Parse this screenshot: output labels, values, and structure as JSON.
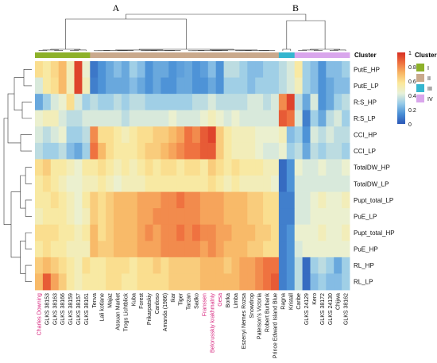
{
  "chart_data": {
    "type": "heatmap",
    "title": "",
    "xlabel": "",
    "ylabel": "",
    "group_labels": [
      "A",
      "B"
    ],
    "rows": [
      "PutE_HP",
      "PutE_LP",
      "R:S_HP",
      "R:S_LP",
      "CCI_HP",
      "CCI_LP",
      "TotalDW_HP",
      "TotalDW_LP",
      "Pupt_total_LP",
      "PuE_LP",
      "Pupt_total_HP",
      "PuE_HP",
      "RL_HP",
      "RL_LP"
    ],
    "columns": [
      "Charles Downing",
      "GLKS 38153",
      "GLKS 38163",
      "GLKS 38166",
      "GLKS 38159",
      "GLKS 38157",
      "GLKS 38161",
      "Tenva",
      "Lali kotlane",
      "Majaz",
      "Assuan Market",
      "Trogs Lichtblick",
      "Kuba",
      "Forest",
      "Prikarpatskiy",
      "Cardoso",
      "Amanda (1986)",
      "Ikar",
      "Tiger",
      "Tarzan",
      "Sadko",
      "Franssen",
      "Belorusskiy krakhmalniy",
      "Gesa",
      "Borka",
      "Limba",
      "Eszenyi Nemes Rozsa",
      "Snowdrop",
      "Paterson's Victoria",
      "Robert Burbank",
      "Prince Edward Island Blue",
      "Ragna",
      "Kristall",
      "Caribe",
      "GLKS 24129",
      "Kero",
      "GLKS 38172",
      "GLKS 24130",
      "Chijwa",
      "GLKS 38162"
    ],
    "column_clusters": [
      "I",
      "I",
      "I",
      "I",
      "I",
      "I",
      "I",
      "II",
      "II",
      "II",
      "II",
      "II",
      "II",
      "II",
      "II",
      "II",
      "II",
      "II",
      "II",
      "II",
      "II",
      "II",
      "II",
      "II",
      "II",
      "II",
      "II",
      "II",
      "II",
      "II",
      "II",
      "III",
      "III",
      "IV",
      "IV",
      "IV",
      "IV",
      "IV",
      "IV",
      "IV"
    ],
    "values": [
      [
        0.6,
        0.55,
        0.62,
        0.7,
        0.5,
        0.95,
        0.45,
        0.08,
        0.15,
        0.2,
        0.25,
        0.2,
        0.3,
        0.25,
        0.15,
        0.2,
        0.2,
        0.15,
        0.18,
        0.2,
        0.15,
        0.18,
        0.25,
        0.15,
        0.35,
        0.35,
        0.3,
        0.25,
        0.25,
        0.3,
        0.3,
        0.35,
        0.4,
        0.55,
        0.3,
        0.25,
        0.15,
        0.25,
        0.25,
        0.3
      ],
      [
        0.4,
        0.55,
        0.6,
        0.7,
        0.5,
        0.95,
        0.5,
        0.1,
        0.15,
        0.2,
        0.2,
        0.2,
        0.25,
        0.2,
        0.15,
        0.2,
        0.15,
        0.15,
        0.2,
        0.2,
        0.15,
        0.15,
        0.2,
        0.15,
        0.3,
        0.3,
        0.3,
        0.25,
        0.3,
        0.3,
        0.3,
        0.35,
        0.4,
        0.5,
        0.3,
        0.25,
        0.15,
        0.2,
        0.25,
        0.25
      ],
      [
        0.2,
        0.3,
        0.4,
        0.45,
        0.6,
        0.4,
        0.3,
        0.35,
        0.3,
        0.3,
        0.35,
        0.3,
        0.35,
        0.35,
        0.3,
        0.3,
        0.3,
        0.3,
        0.3,
        0.3,
        0.35,
        0.35,
        0.4,
        0.35,
        0.35,
        0.35,
        0.35,
        0.4,
        0.4,
        0.35,
        0.4,
        0.8,
        0.95,
        0.35,
        0.2,
        0.4,
        0.15,
        0.2,
        0.3,
        0.35
      ],
      [
        0.45,
        0.5,
        0.5,
        0.4,
        0.35,
        0.35,
        0.4,
        0.4,
        0.4,
        0.4,
        0.4,
        0.35,
        0.4,
        0.4,
        0.4,
        0.4,
        0.4,
        0.45,
        0.4,
        0.4,
        0.4,
        0.45,
        0.5,
        0.45,
        0.4,
        0.45,
        0.4,
        0.4,
        0.4,
        0.4,
        0.4,
        0.9,
        0.85,
        0.4,
        0.1,
        0.3,
        0.2,
        0.35,
        0.4,
        0.3
      ],
      [
        0.4,
        0.35,
        0.4,
        0.45,
        0.3,
        0.3,
        0.35,
        0.8,
        0.6,
        0.6,
        0.55,
        0.5,
        0.55,
        0.6,
        0.6,
        0.65,
        0.65,
        0.7,
        0.75,
        0.85,
        0.8,
        0.9,
        0.95,
        0.65,
        0.55,
        0.5,
        0.5,
        0.5,
        0.45,
        0.45,
        0.45,
        0.5,
        0.25,
        0.3,
        0.15,
        0.4,
        0.35,
        0.4,
        0.35,
        0.35
      ],
      [
        0.35,
        0.3,
        0.3,
        0.35,
        0.25,
        0.2,
        0.3,
        0.85,
        0.7,
        0.6,
        0.55,
        0.55,
        0.55,
        0.6,
        0.65,
        0.65,
        0.7,
        0.75,
        0.8,
        0.85,
        0.85,
        0.9,
        0.9,
        0.65,
        0.55,
        0.5,
        0.5,
        0.5,
        0.45,
        0.4,
        0.4,
        0.45,
        0.3,
        0.35,
        0.2,
        0.35,
        0.3,
        0.35,
        0.35,
        0.3
      ],
      [
        0.6,
        0.65,
        0.55,
        0.55,
        0.5,
        0.45,
        0.55,
        0.55,
        0.6,
        0.55,
        0.5,
        0.55,
        0.5,
        0.55,
        0.6,
        0.55,
        0.6,
        0.6,
        0.55,
        0.6,
        0.6,
        0.55,
        0.65,
        0.6,
        0.55,
        0.6,
        0.55,
        0.55,
        0.55,
        0.5,
        0.5,
        0.05,
        0.15,
        0.45,
        0.4,
        0.4,
        0.45,
        0.4,
        0.4,
        0.45
      ],
      [
        0.55,
        0.6,
        0.55,
        0.5,
        0.45,
        0.45,
        0.5,
        0.5,
        0.55,
        0.5,
        0.45,
        0.5,
        0.5,
        0.5,
        0.55,
        0.55,
        0.55,
        0.55,
        0.55,
        0.55,
        0.55,
        0.55,
        0.6,
        0.55,
        0.5,
        0.55,
        0.5,
        0.5,
        0.5,
        0.5,
        0.45,
        0.05,
        0.15,
        0.4,
        0.4,
        0.4,
        0.4,
        0.4,
        0.4,
        0.4
      ],
      [
        0.55,
        0.55,
        0.6,
        0.55,
        0.5,
        0.45,
        0.55,
        0.65,
        0.6,
        0.65,
        0.7,
        0.7,
        0.7,
        0.75,
        0.75,
        0.75,
        0.8,
        0.8,
        0.85,
        0.8,
        0.8,
        0.75,
        0.75,
        0.75,
        0.7,
        0.7,
        0.7,
        0.65,
        0.65,
        0.6,
        0.6,
        0.1,
        0.1,
        0.4,
        0.4,
        0.45,
        0.5,
        0.45,
        0.45,
        0.5
      ],
      [
        0.5,
        0.55,
        0.55,
        0.55,
        0.5,
        0.45,
        0.5,
        0.65,
        0.6,
        0.65,
        0.7,
        0.7,
        0.7,
        0.75,
        0.75,
        0.8,
        0.8,
        0.8,
        0.8,
        0.8,
        0.8,
        0.75,
        0.75,
        0.75,
        0.7,
        0.7,
        0.7,
        0.65,
        0.65,
        0.6,
        0.6,
        0.1,
        0.1,
        0.4,
        0.4,
        0.45,
        0.45,
        0.45,
        0.45,
        0.45
      ],
      [
        0.6,
        0.6,
        0.6,
        0.55,
        0.55,
        0.5,
        0.55,
        0.7,
        0.6,
        0.65,
        0.7,
        0.7,
        0.7,
        0.75,
        0.8,
        0.75,
        0.8,
        0.8,
        0.85,
        0.8,
        0.85,
        0.8,
        0.8,
        0.75,
        0.75,
        0.7,
        0.7,
        0.7,
        0.65,
        0.65,
        0.6,
        0.1,
        0.15,
        0.45,
        0.45,
        0.45,
        0.5,
        0.45,
        0.45,
        0.5
      ],
      [
        0.55,
        0.6,
        0.55,
        0.55,
        0.5,
        0.5,
        0.5,
        0.7,
        0.65,
        0.65,
        0.7,
        0.7,
        0.7,
        0.75,
        0.75,
        0.75,
        0.8,
        0.8,
        0.8,
        0.8,
        0.8,
        0.75,
        0.8,
        0.75,
        0.7,
        0.7,
        0.7,
        0.65,
        0.65,
        0.6,
        0.6,
        0.1,
        0.15,
        0.4,
        0.45,
        0.45,
        0.45,
        0.45,
        0.45,
        0.45
      ],
      [
        0.65,
        0.7,
        0.65,
        0.6,
        0.55,
        0.5,
        0.6,
        0.55,
        0.55,
        0.6,
        0.6,
        0.6,
        0.55,
        0.6,
        0.6,
        0.65,
        0.6,
        0.65,
        0.65,
        0.65,
        0.65,
        0.7,
        0.7,
        0.7,
        0.65,
        0.7,
        0.75,
        0.75,
        0.8,
        0.85,
        0.85,
        0.1,
        0.15,
        0.35,
        0.05,
        0.3,
        0.35,
        0.3,
        0.2,
        0.3
      ],
      [
        0.7,
        0.9,
        0.75,
        0.65,
        0.55,
        0.5,
        0.55,
        0.55,
        0.55,
        0.6,
        0.6,
        0.55,
        0.55,
        0.6,
        0.6,
        0.6,
        0.6,
        0.65,
        0.65,
        0.65,
        0.65,
        0.7,
        0.7,
        0.7,
        0.7,
        0.7,
        0.75,
        0.75,
        0.8,
        0.85,
        0.9,
        0.1,
        0.15,
        0.35,
        0.05,
        0.25,
        0.3,
        0.25,
        0.25,
        0.3
      ]
    ],
    "colorbar": {
      "range": [
        0,
        1
      ],
      "ticks": [
        "0",
        "0.2",
        "0.4",
        "0.6",
        "0.8",
        "1"
      ]
    },
    "legend": {
      "title": "Cluster",
      "placement": "top-right",
      "items": [
        "I",
        "II",
        "III",
        "IV"
      ]
    },
    "cluster_colors": {
      "I": "#8db12a",
      "II": "#c9a98c",
      "III": "#35b6cf",
      "IV": "#d9a6ec"
    },
    "colormap": [
      "#2b57b6",
      "#4a90d6",
      "#98cbe8",
      "#e8f1d8",
      "#fbe89a",
      "#f8b564",
      "#ee6f3e",
      "#d72d22"
    ],
    "highlighted_columns": [
      "Charles Downing",
      "Franssen",
      "Belorusskiy krakhmalniy",
      "Gesa"
    ]
  }
}
